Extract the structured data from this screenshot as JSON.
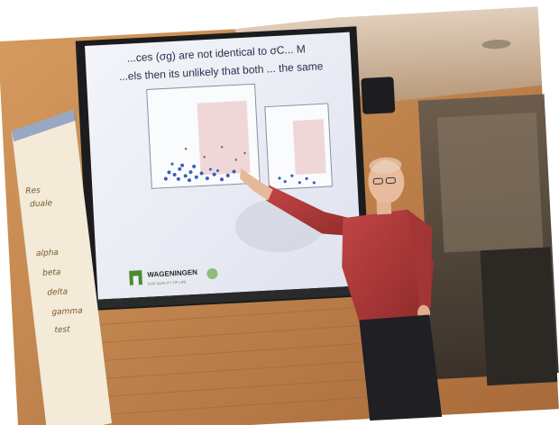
{
  "scene": {
    "slide_lines": [
      "...ces (σg) are not identical to σC... M",
      "...els then its unlikely that both ... the same"
    ],
    "logo": {
      "name": "WAGENINGEN",
      "subtitle": "FOR QUALITY OF LIFE"
    },
    "flipchart_words": [
      "Res",
      "duale",
      "alpha",
      "beta",
      "delta",
      "gamma",
      "test"
    ],
    "colors": {
      "wall": "#c98a4e",
      "screen": "#eef0f6",
      "shirt": "#b83a3a",
      "ceiling": "#d8c6b2"
    }
  }
}
